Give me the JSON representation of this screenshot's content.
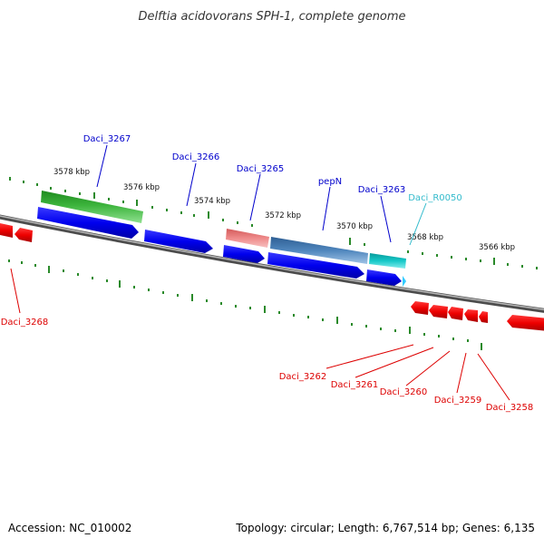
{
  "title": "Delftia acidovorans SPH-1, complete genome",
  "footer": {
    "accession": "Accession: NC_010002",
    "summary": "Topology: circular; Length: 6,767,514 bp; Genes: 6,135"
  },
  "kbp_labels": [
    "3578 kbp",
    "3576 kbp",
    "3574 kbp",
    "3572 kbp",
    "3570 kbp",
    "3568 kbp",
    "3566 kbp"
  ],
  "gene_labels": {
    "daci_3267": "Daci_3267",
    "daci_3266": "Daci_3266",
    "daci_3265": "Daci_3265",
    "pepN": "pepN",
    "daci_3263": "Daci_3263",
    "daci_r0050": "Daci_R0050",
    "daci_3268": "Daci_3268",
    "daci_3262": "Daci_3262",
    "daci_3261": "Daci_3261",
    "daci_3260": "Daci_3260",
    "daci_3259": "Daci_3259",
    "daci_3258": "Daci_3258"
  },
  "colors": {
    "forward_label": "#0000cc",
    "rna_label": "#33bbcc",
    "reverse_label": "#dd0000",
    "cds_blue": "#0000ee",
    "green_feature": "#2ca02c",
    "pink_feature": "#e87070",
    "steel_feature": "#4a7fb5",
    "cyan_feature": "#11c4c4",
    "reverse_cds": "#ee0000",
    "backbone": "#7a7a7a",
    "tick": "#2a8a2a"
  }
}
